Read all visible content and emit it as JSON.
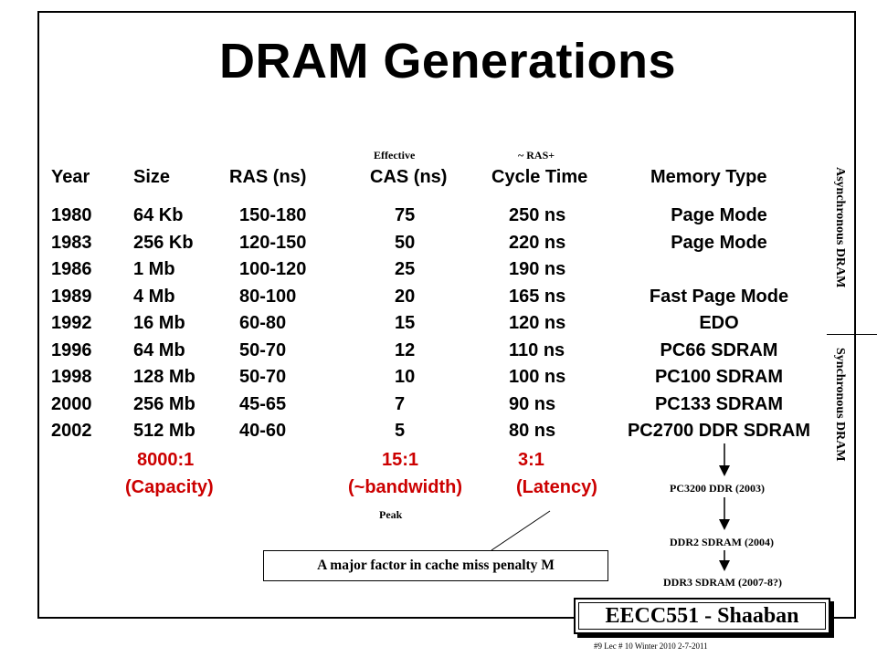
{
  "title": "DRAM Generations",
  "subheaders": {
    "effective": "Effective",
    "ras_plus": "~ RAS+",
    "peak": "Peak"
  },
  "columns": [
    "Year",
    "Size",
    "RAS (ns)",
    "CAS (ns)",
    "Cycle Time",
    "Memory Type"
  ],
  "rows": [
    [
      "1980",
      "64 Kb",
      "150-180",
      "75",
      "250 ns",
      "Page Mode"
    ],
    [
      "1983",
      "256 Kb",
      "120-150",
      "50",
      "220 ns",
      "Page Mode"
    ],
    [
      "1986",
      "1 Mb",
      "100-120",
      "25",
      "190 ns",
      ""
    ],
    [
      "1989",
      "4 Mb",
      "80-100",
      "20",
      "165 ns",
      "Fast Page Mode"
    ],
    [
      "1992",
      "16 Mb",
      "60-80",
      "15",
      "120 ns",
      "EDO"
    ],
    [
      "1996",
      "64 Mb",
      "50-70",
      "12",
      "110 ns",
      "PC66 SDRAM"
    ],
    [
      "1998",
      "128 Mb",
      "50-70",
      "10",
      "100 ns",
      "PC100 SDRAM"
    ],
    [
      "2000",
      "256 Mb",
      "45-65",
      "7",
      "90 ns",
      "PC133 SDRAM"
    ],
    [
      "2002",
      "512 Mb",
      "40-60",
      "5",
      "80 ns",
      "PC2700 DDR SDRAM"
    ]
  ],
  "ratios": {
    "capacity_value": "8000:1",
    "capacity_label": "(Capacity)",
    "bandwidth_value": "15:1",
    "bandwidth_label": "(~bandwidth)",
    "latency_value": "3:1",
    "latency_label": "(Latency)"
  },
  "side_labels": {
    "async": "Asynchronous DRAM",
    "sync": "Synchronous DRAM"
  },
  "later_types": [
    "PC3200 DDR (2003)",
    "DDR2 SDRAM (2004)",
    "DDR3 SDRAM (2007-8?)"
  ],
  "callout": "A major factor in cache miss penalty M",
  "footer": {
    "course": "EECC551 - Shaaban",
    "lecture_note": "#9   Lec # 10  Winter 2010  2-7-2011"
  }
}
